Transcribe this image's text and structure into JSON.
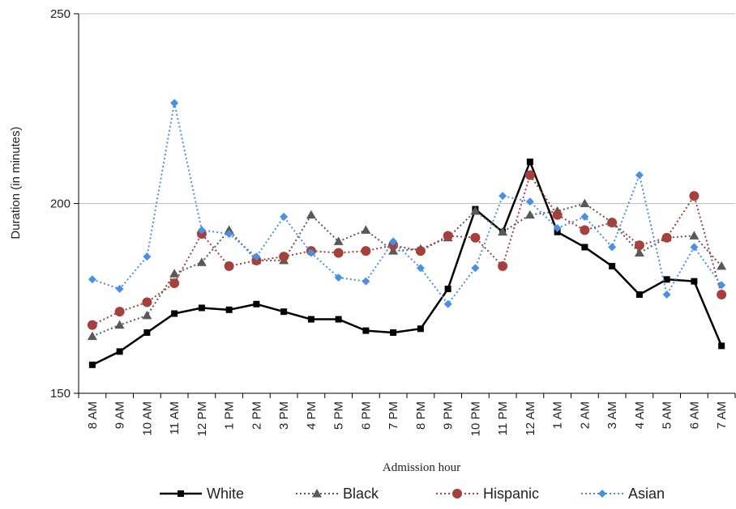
{
  "chart_data": {
    "type": "line",
    "title": "",
    "xlabel": "Admission hour",
    "ylabel": "Duration  (in minutes)",
    "ylim": [
      150,
      250
    ],
    "yticks": [
      "150",
      "200",
      "250"
    ],
    "categories": [
      "8 AM",
      "9 AM",
      "10 AM",
      "11 AM",
      "12 PM",
      "1 PM",
      "2 PM",
      "3 PM",
      "4 PM",
      "5 PM",
      "6 PM",
      "7 PM",
      "8 PM",
      "9 PM",
      "10 PM",
      "11 PM",
      "12 AM",
      "1 AM",
      "2 AM",
      "3 AM",
      "4 AM",
      "5 AM",
      "6 AM",
      "7 AM"
    ],
    "grid": "horizontal",
    "legend_position": "bottom",
    "series": [
      {
        "name": "White",
        "color": "#000000",
        "dash": "solid",
        "marker": "square",
        "values": [
          157.5,
          161,
          166,
          171,
          172.5,
          172,
          173.5,
          171.5,
          169.5,
          169.5,
          166.5,
          166,
          167,
          177.5,
          198.5,
          192.5,
          211,
          192.5,
          188.5,
          183.5,
          176,
          180,
          179.5,
          162.5
        ]
      },
      {
        "name": "Black",
        "color": "#595959",
        "dash": "dotted",
        "marker": "triangle",
        "values": [
          165,
          168,
          170.5,
          181.5,
          184.5,
          193,
          185,
          185,
          197,
          190,
          193,
          187.5,
          188,
          191,
          198,
          192.5,
          197,
          198,
          200,
          195,
          187,
          191,
          191.5,
          183.5
        ]
      },
      {
        "name": "Hispanic",
        "color": "#A5403C",
        "dash": "dotted",
        "marker": "circle",
        "values": [
          168,
          171.5,
          174,
          179,
          192,
          183.5,
          185,
          186,
          187.5,
          187,
          187.5,
          189,
          187.5,
          191.5,
          191,
          183.5,
          207.5,
          197,
          193,
          195,
          189,
          191,
          202,
          176
        ]
      },
      {
        "name": "Asian",
        "color": "#4A90E2",
        "dash": "dotted",
        "marker": "diamond",
        "values": [
          180,
          177.5,
          186,
          226.5,
          193,
          192,
          186,
          196.5,
          187,
          180.5,
          179.5,
          190,
          183,
          173.5,
          183,
          202,
          200.5,
          193.5,
          196.5,
          188.5,
          207.5,
          176,
          188.5,
          178.5
        ]
      }
    ]
  }
}
